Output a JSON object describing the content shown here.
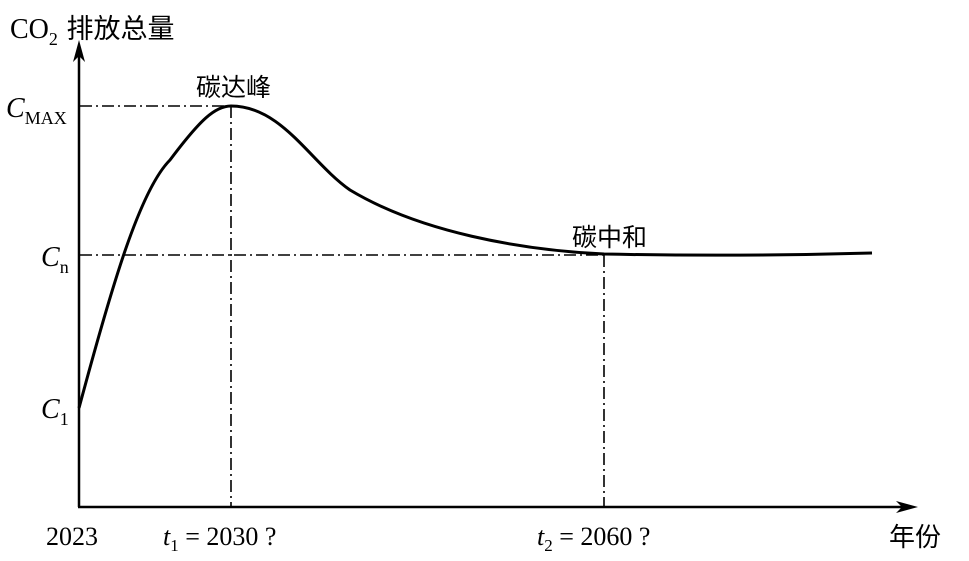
{
  "chart_data": {
    "type": "line",
    "title": "",
    "ylabel": {
      "prefix": "CO",
      "sub": "2",
      "rest": " 排放总量"
    },
    "xlabel": "年份",
    "x_start_label": "2023",
    "y_tick_labels": [
      {
        "id": "cmax",
        "main": "C",
        "sub": "MAX"
      },
      {
        "id": "cn",
        "main": "C",
        "sub": "n"
      },
      {
        "id": "c1",
        "main": "C",
        "sub": "1"
      }
    ],
    "x_markers": [
      {
        "id": "t1",
        "main": "t",
        "sub": "1",
        "rest": " = 2030 ?"
      },
      {
        "id": "t2",
        "main": "t",
        "sub": "2",
        "rest": " = 2060 ?"
      }
    ],
    "annotations": [
      {
        "id": "peak",
        "text": "碳达峰"
      },
      {
        "id": "neutrality",
        "text": "碳中和"
      }
    ],
    "curve_color": "#000000",
    "guide_style": "dash-dot",
    "grid": false,
    "legend": "none"
  }
}
